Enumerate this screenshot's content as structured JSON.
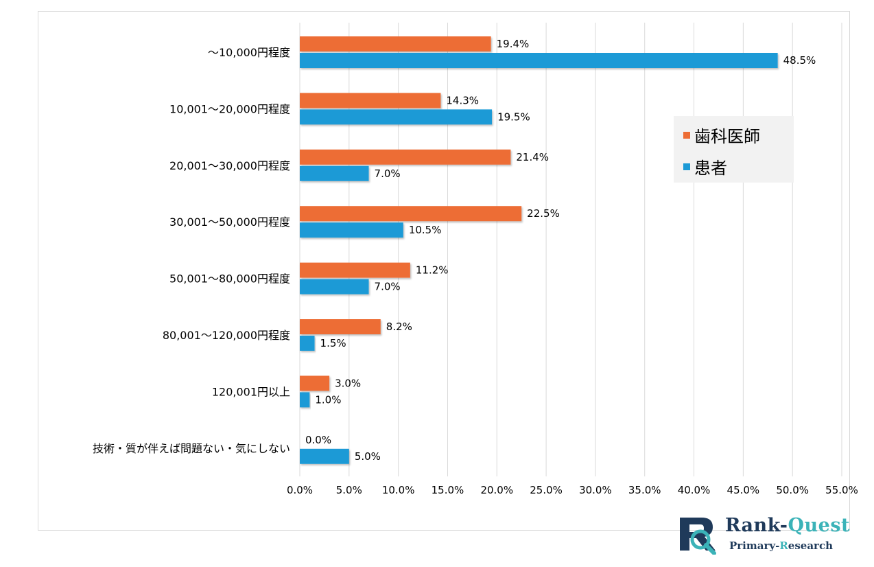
{
  "chart_data": {
    "type": "bar",
    "orientation": "horizontal",
    "categories": [
      "～10,000円程度",
      "10,001～20,000円程度",
      "20,001～30,000円程度",
      "30,001～50,000円程度",
      "50,001～80,000円程度",
      "80,001～120,000円程度",
      "120,001円以上",
      "技術・質が伴えば問題ない・気にしない"
    ],
    "series": [
      {
        "name": "歯科医師",
        "color": "#ed6d35",
        "values": [
          19.4,
          14.3,
          21.4,
          22.5,
          11.2,
          8.2,
          3.0,
          0.0
        ]
      },
      {
        "name": "患者",
        "color": "#1c9ad6",
        "values": [
          48.5,
          19.5,
          7.0,
          10.5,
          7.0,
          1.5,
          1.0,
          5.0
        ]
      }
    ],
    "xlim": [
      0,
      55
    ],
    "xticks": [
      0,
      5,
      10,
      15,
      20,
      25,
      30,
      35,
      40,
      45,
      50,
      55
    ],
    "xtick_labels": [
      "0.0%",
      "5.0%",
      "10.0%",
      "15.0%",
      "20.0%",
      "25.0%",
      "30.0%",
      "35.0%",
      "40.0%",
      "45.0%",
      "50.0%",
      "55.0%"
    ],
    "value_format": "percent_1dp",
    "grid": true,
    "legend_position": "right",
    "title": "",
    "xlabel": "",
    "ylabel": ""
  },
  "legend": {
    "items": [
      {
        "label": "歯科医師",
        "color": "#ed6d35"
      },
      {
        "label": "患者",
        "color": "#1c9ad6"
      }
    ]
  },
  "logo": {
    "title_part1": "Rank-",
    "title_part2": "Quest",
    "subtitle_part1": "Primary-",
    "subtitle_part2": "R",
    "subtitle_part3": "esearch"
  }
}
